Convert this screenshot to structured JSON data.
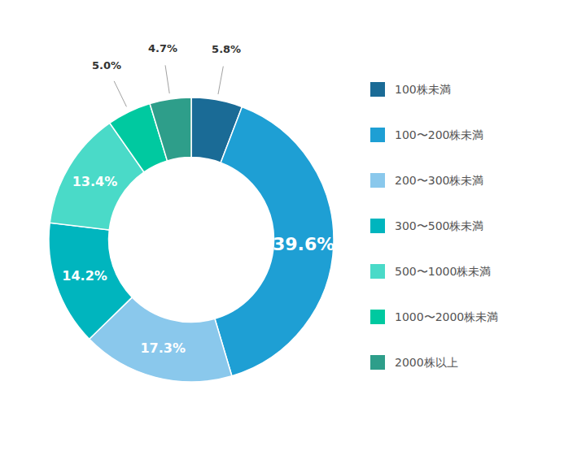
{
  "chart_data": {
    "type": "donut",
    "categories": [
      "100株未満",
      "100〜200株未満",
      "200〜300株未満",
      "300〜500株未満",
      "500〜1000株未満",
      "1000〜2000株未満",
      "2000株以上"
    ],
    "values": [
      5.8,
      39.6,
      17.3,
      14.2,
      13.4,
      5.0,
      4.7
    ],
    "value_labels": [
      "5.8%",
      "39.6%",
      "17.3%",
      "14.2%",
      "13.4%",
      "5.0%",
      "4.7%"
    ],
    "colors": [
      "#1a6b96",
      "#1e9fd4",
      "#8ac8ec",
      "#00b5be",
      "#4adac8",
      "#00c9a0",
      "#2e9e8a"
    ],
    "data_labels": true,
    "legend": "right"
  }
}
